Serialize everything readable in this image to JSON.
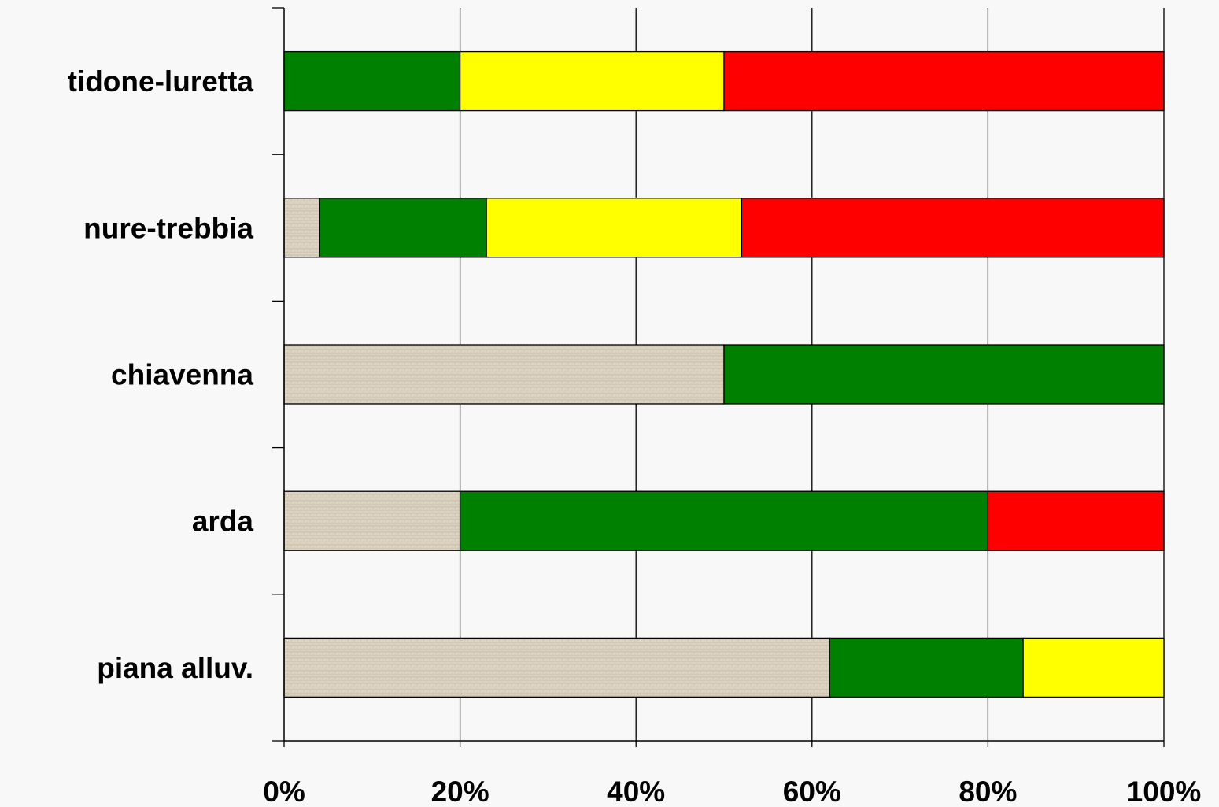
{
  "chart_data": {
    "type": "bar",
    "orientation": "horizontal",
    "stacked": true,
    "normalized_percent": true,
    "categories": [
      "tidone-luretta",
      "nure-trebbia",
      "chiavenna",
      "arda",
      "piana alluv."
    ],
    "x_ticks": [
      "0%",
      "20%",
      "40%",
      "60%",
      "80%",
      "100%"
    ],
    "xlim": [
      0,
      100
    ],
    "grid": "vertical",
    "legend": "none",
    "series": [
      {
        "color": "texture-beige",
        "values": [
          0,
          4,
          50,
          20,
          62
        ]
      },
      {
        "color": "#008000",
        "values": [
          20,
          19,
          50,
          60,
          22
        ]
      },
      {
        "color": "#ffff00",
        "values": [
          30,
          29,
          0,
          0,
          16
        ]
      },
      {
        "color": "#ff0000",
        "values": [
          50,
          48,
          0,
          20,
          0
        ]
      }
    ]
  }
}
